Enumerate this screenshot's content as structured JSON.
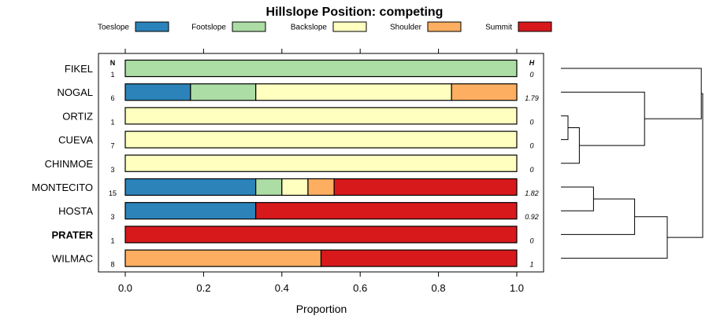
{
  "chart_data": {
    "type": "bar",
    "subtype": "stacked-horizontal-proportion",
    "title": "Hillslope Position: competing",
    "xlabel": "Proportion",
    "xlim": [
      0,
      1
    ],
    "xticks": [
      "0.0",
      "0.2",
      "0.4",
      "0.6",
      "0.8",
      "1.0"
    ],
    "n_header": "N",
    "h_header": "H",
    "legend_placement": "top",
    "series": [
      {
        "name": "Toeslope",
        "color": "#2b83ba"
      },
      {
        "name": "Footslope",
        "color": "#abdda4"
      },
      {
        "name": "Backslope",
        "color": "#ffffbf"
      },
      {
        "name": "Shoulder",
        "color": "#fdae61"
      },
      {
        "name": "Summit",
        "color": "#d7191c"
      }
    ],
    "rows": [
      {
        "label": "FIKEL",
        "n": "1",
        "h": "0",
        "bold": false,
        "values": [
          0,
          1,
          0,
          0,
          0
        ]
      },
      {
        "label": "NOGAL",
        "n": "6",
        "h": "1.79",
        "bold": false,
        "values": [
          0.1667,
          0.1667,
          0.5,
          0.1667,
          0
        ]
      },
      {
        "label": "ORTIZ",
        "n": "1",
        "h": "0",
        "bold": false,
        "values": [
          0,
          0,
          1,
          0,
          0
        ]
      },
      {
        "label": "CUEVA",
        "n": "7",
        "h": "0",
        "bold": false,
        "values": [
          0,
          0,
          1,
          0,
          0
        ]
      },
      {
        "label": "CHINMOE",
        "n": "3",
        "h": "0",
        "bold": false,
        "values": [
          0,
          0,
          1,
          0,
          0
        ]
      },
      {
        "label": "MONTECITO",
        "n": "15",
        "h": "1.82",
        "bold": false,
        "values": [
          0.3333,
          0.0667,
          0.0667,
          0.0667,
          0.4667
        ]
      },
      {
        "label": "HOSTA",
        "n": "3",
        "h": "0.92",
        "bold": false,
        "values": [
          0.3333,
          0,
          0,
          0,
          0.6667
        ]
      },
      {
        "label": "PRATER",
        "n": "1",
        "h": "0",
        "bold": true,
        "values": [
          0,
          0,
          0,
          0,
          1
        ]
      },
      {
        "label": "WILMAC",
        "n": "8",
        "h": "1",
        "bold": false,
        "values": [
          0,
          0,
          0,
          0.5,
          0.5
        ]
      }
    ],
    "dendrogram": {
      "leaf_order": [
        "FIKEL",
        "NOGAL",
        "ORTIZ",
        "CUEVA",
        "CHINMOE",
        "MONTECITO",
        "HOSTA",
        "PRATER",
        "WILMAC"
      ],
      "merges": [
        {
          "a": "ORTIZ",
          "b": "CUEVA",
          "height": 0.05
        },
        {
          "a": "m0",
          "b": "CHINMOE",
          "height": 0.13
        },
        {
          "a": "NOGAL",
          "b": "m1",
          "height": 0.59
        },
        {
          "a": "FIKEL",
          "b": "m2",
          "height": 0.99
        },
        {
          "a": "MONTECITO",
          "b": "HOSTA",
          "height": 0.23
        },
        {
          "a": "m4",
          "b": "PRATER",
          "height": 0.52
        },
        {
          "a": "m5",
          "b": "WILMAC",
          "height": 0.75
        },
        {
          "a": "m3",
          "b": "m6",
          "height": 1.0
        }
      ]
    }
  }
}
